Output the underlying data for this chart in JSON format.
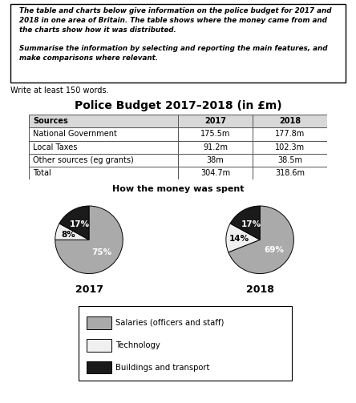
{
  "title_box_text_line1": "The table and charts below give information on the police budget for 2017 and",
  "title_box_text_line2": "2018 in one area of Britain. The table shows where the money came from and",
  "title_box_text_line3": "the charts show how it was distributed.",
  "title_box_text_line4": "",
  "title_box_text_line5": "Summarise the information by selecting and reporting the main features, and",
  "title_box_text_line6": "make comparisons where relevant.",
  "write_at_least": "Write at least 150 words.",
  "table_title": "Police Budget 2017–2018 (in £m)",
  "table_headers": [
    "Sources",
    "2017",
    "2018"
  ],
  "table_rows": [
    [
      "National Government",
      "175.5m",
      "177.8m"
    ],
    [
      "Local Taxes",
      "91.2m",
      "102.3m"
    ],
    [
      "Other sources (eg grants)",
      "38m",
      "38.5m"
    ],
    [
      "Total",
      "304.7m",
      "318.6m"
    ]
  ],
  "pie_title": "How the money was spent",
  "pie_2017_values": [
    75,
    8,
    17
  ],
  "pie_2018_values": [
    69,
    14,
    17
  ],
  "pie_colors": [
    "#aaaaaa",
    "#f0f0f0",
    "#1a1a1a"
  ],
  "pie_labels_2017": [
    "75%",
    "8%",
    "17%"
  ],
  "pie_labels_2018": [
    "69%",
    "14%",
    "17%"
  ],
  "pie_label_colors_2017": [
    "white",
    "black",
    "white"
  ],
  "pie_label_colors_2018": [
    "white",
    "black",
    "white"
  ],
  "year_2017": "2017",
  "year_2018": "2018",
  "legend_labels": [
    "Salaries (officers and staff)",
    "Technology",
    "Buildings and transport"
  ],
  "legend_colors": [
    "#aaaaaa",
    "#f0f0f0",
    "#1a1a1a"
  ],
  "background_color": "#ffffff"
}
